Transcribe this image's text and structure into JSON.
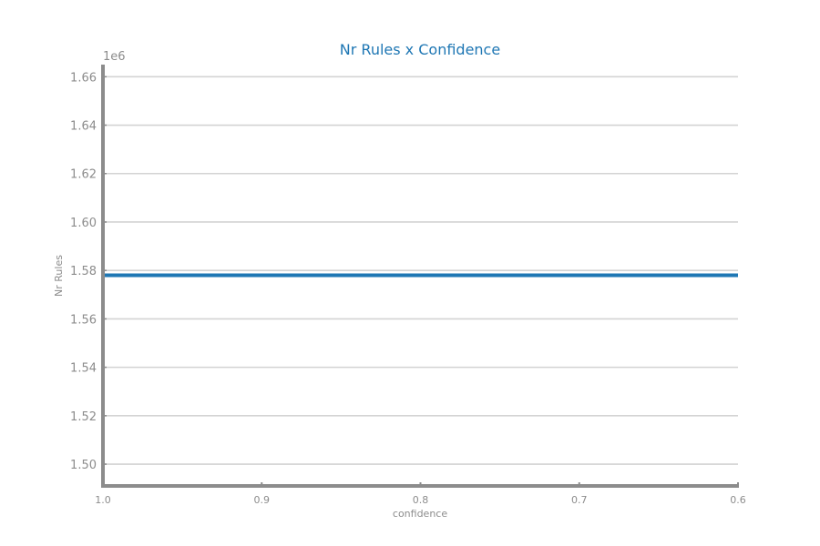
{
  "chart_data": {
    "type": "line",
    "title": "Nr Rules x Confidence",
    "xlabel": "confidence",
    "ylabel": "Nr Rules",
    "y_offset_label": "1e6",
    "x": [
      1.0,
      0.9,
      0.8,
      0.7,
      0.6
    ],
    "xlim": [
      1.0,
      0.6
    ],
    "x_reversed": true,
    "x_ticks": [
      1.0,
      0.9,
      0.8,
      0.7,
      0.6
    ],
    "x_tick_labels": [
      "1.0",
      "0.9",
      "0.8",
      "0.7",
      "0.6"
    ],
    "ylim": [
      1.491,
      1.665
    ],
    "y_ticks": [
      1.5,
      1.52,
      1.54,
      1.56,
      1.58,
      1.6,
      1.62,
      1.64,
      1.66
    ],
    "y_tick_labels": [
      "1.50",
      "1.52",
      "1.54",
      "1.56",
      "1.58",
      "1.60",
      "1.62",
      "1.64",
      "1.66"
    ],
    "grid": "horizontal",
    "series": [
      {
        "values": [
          1.578,
          1.578,
          1.578,
          1.578,
          1.578
        ]
      }
    ],
    "colors": {
      "line": "#1f77b4",
      "title": "#1f77b4",
      "axis": "#8c8c8c",
      "grid": "#d3d3d3"
    }
  }
}
